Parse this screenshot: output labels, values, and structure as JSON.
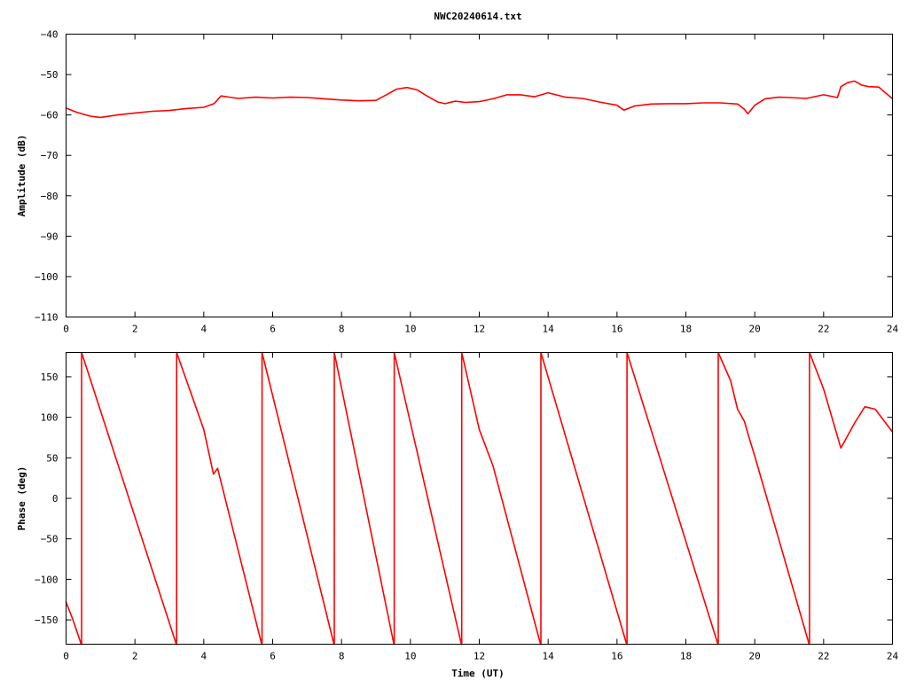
{
  "chart_data": [
    {
      "type": "line",
      "title": "NWC20240614.txt",
      "xlabel": "",
      "ylabel": "Amplitude (dB)",
      "xlim": [
        0,
        24
      ],
      "ylim": [
        -110,
        -40
      ],
      "xticks": [
        0,
        2,
        4,
        6,
        8,
        10,
        12,
        14,
        16,
        18,
        20,
        22,
        24
      ],
      "yticks": [
        -40,
        -50,
        -60,
        -70,
        -80,
        -90,
        -100,
        -110
      ],
      "grid": false,
      "legend": "none",
      "color": "#ff0000",
      "series": [
        {
          "x": [
            0,
            0.3,
            0.7,
            1.0,
            1.5,
            2.0,
            2.5,
            3.0,
            3.5,
            4.0,
            4.3,
            4.5,
            5.0,
            5.5,
            6.0,
            6.5,
            7.0,
            7.5,
            8.0,
            8.5,
            9.0,
            9.3,
            9.6,
            9.9,
            10.2,
            10.5,
            10.8,
            11.0,
            11.3,
            11.6,
            12.0,
            12.4,
            12.8,
            13.2,
            13.6,
            14.0,
            14.5,
            15.0,
            15.5,
            16.0,
            16.2,
            16.5,
            17.0,
            17.5,
            18.0,
            18.5,
            19.0,
            19.5,
            19.7,
            19.8,
            20.0,
            20.3,
            20.7,
            21.0,
            21.5,
            22.0,
            22.4,
            22.5,
            22.7,
            22.9,
            23.1,
            23.3,
            23.6,
            24.0
          ],
          "y": [
            -58.3,
            -59.3,
            -60.3,
            -60.6,
            -60.0,
            -59.5,
            -59.1,
            -58.9,
            -58.4,
            -58.1,
            -57.2,
            -55.3,
            -55.9,
            -55.6,
            -55.8,
            -55.6,
            -55.7,
            -56.0,
            -56.3,
            -56.5,
            -56.4,
            -55.0,
            -53.6,
            -53.2,
            -53.8,
            -55.4,
            -56.8,
            -57.2,
            -56.6,
            -56.9,
            -56.7,
            -56.0,
            -55.0,
            -55.0,
            -55.5,
            -54.5,
            -55.6,
            -55.9,
            -56.8,
            -57.6,
            -58.8,
            -57.8,
            -57.3,
            -57.2,
            -57.2,
            -57.0,
            -57.0,
            -57.3,
            -58.6,
            -59.7,
            -57.6,
            -56.0,
            -55.6,
            -55.7,
            -55.9,
            -55.0,
            -55.7,
            -53.0,
            -52.0,
            -51.6,
            -52.6,
            -53.0,
            -53.1,
            -56.0
          ]
        }
      ]
    },
    {
      "type": "line",
      "title": "",
      "xlabel": "Time (UT)",
      "ylabel": "Phase (deg)",
      "xlim": [
        0,
        24
      ],
      "ylim": [
        -180,
        180
      ],
      "xticks": [
        0,
        2,
        4,
        6,
        8,
        10,
        12,
        14,
        16,
        18,
        20,
        22,
        24
      ],
      "yticks": [
        150,
        100,
        50,
        0,
        -50,
        -100,
        -150
      ],
      "grid": false,
      "legend": "none",
      "color": "#ff0000",
      "series": [
        {
          "x": [
            0,
            0.2,
            0.44,
            0.45,
            0.45,
            3.2,
            3.21,
            3.21,
            4.0,
            4.28,
            4.4,
            4.5,
            5.68,
            5.69,
            5.69,
            7.78,
            7.79,
            7.79,
            9.52,
            9.53,
            9.53,
            11.48,
            11.49,
            11.49,
            12.0,
            12.4,
            13.78,
            13.79,
            13.79,
            16.28,
            16.29,
            16.29,
            18.93,
            18.94,
            18.94,
            19.3,
            19.5,
            19.7,
            19.8,
            20.0,
            21.58,
            21.59,
            21.59,
            22.0,
            22.5,
            22.9,
            23.2,
            23.5,
            24.0
          ],
          "y": [
            -128,
            -150,
            -180,
            -180,
            180,
            -180,
            -180,
            180,
            85,
            30,
            37,
            20,
            -180,
            -180,
            180,
            -180,
            -180,
            180,
            -180,
            -180,
            180,
            -180,
            -180,
            180,
            85,
            40,
            -180,
            -180,
            180,
            -180,
            -180,
            180,
            -180,
            -180,
            180,
            145,
            110,
            95,
            80,
            52,
            -180,
            -180,
            180,
            135,
            62,
            93,
            113,
            110,
            82
          ]
        }
      ]
    }
  ]
}
